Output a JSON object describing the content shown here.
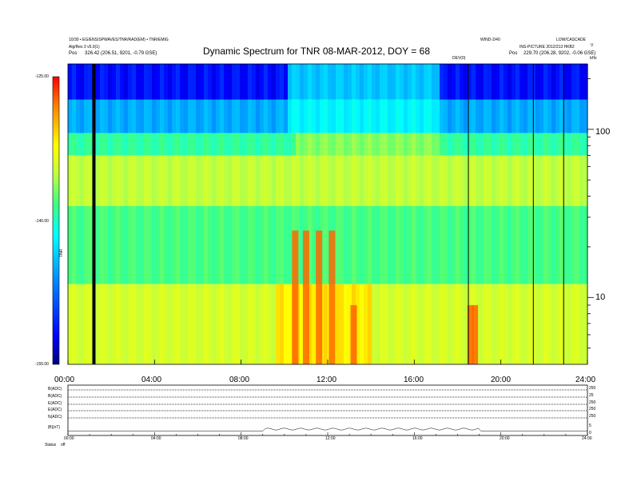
{
  "header": {
    "left_line1": "10/30 • EG/ENS/SPWAVES/TNR/RAD(EM) • TNR/EMIG",
    "left_line2": "Alg/Res 3 v5.0(1)",
    "left_line3_label": "Pos",
    "left_line3_value": "326.42 (206.51, 9201, -0.79 GSE)",
    "right_line1": "WIND-2/40",
    "right_line1b": "LOW/CASCADE",
    "right_line2": "INS-PICTURE 2012/213 HKB2",
    "right_line3_label": "Pos",
    "right_line3_value": "229.70 (206.28, 9202, -0.06 GSE)",
    "right_marker": "DEV(0)",
    "corner_unit": "kHz",
    "corner_v": "V"
  },
  "chart_data": {
    "type": "heatmap",
    "title": "Dynamic Spectrum for TNR 08-MAR-2012, DOY = 68",
    "xlabel": "",
    "x_ticks": [
      "00:00",
      "04:00",
      "08:00",
      "12:00",
      "16:00",
      "20:00",
      "24:00"
    ],
    "x_range_hours": [
      0,
      24
    ],
    "ylabel_right": "kHz",
    "y_scale": "log",
    "y_ticks": [
      {
        "value": 100,
        "label": "100"
      },
      {
        "value": 10,
        "label": "10"
      }
    ],
    "y_range_khz": [
      4,
      245
    ],
    "colorbar": {
      "label": "TNR",
      "ticks": [
        "-125.00",
        "-140.00",
        "-155.00"
      ],
      "range_db": [
        -155,
        -125
      ],
      "colors": [
        "#000080",
        "#0000ff",
        "#00a0ff",
        "#00ffff",
        "#40ff80",
        "#c0ff40",
        "#ffff00",
        "#ff8000",
        "#ff0000"
      ]
    },
    "data_gaps_hours": [
      1.2,
      18.5,
      21.5,
      22.9
    ],
    "bands": [
      {
        "name": "background-high",
        "from_khz": 150,
        "to_khz": 245,
        "db": -151
      },
      {
        "name": "cyan-mid",
        "from_khz": 95,
        "to_khz": 150,
        "db": -147
      },
      {
        "name": "green-upper",
        "from_khz": 70,
        "to_khz": 95,
        "db": -141
      },
      {
        "name": "yellow-band",
        "from_khz": 35,
        "to_khz": 70,
        "db": -136
      },
      {
        "name": "green-lower",
        "from_khz": 12,
        "to_khz": 35,
        "db": -140
      },
      {
        "name": "yellow-low",
        "from_khz": 4,
        "to_khz": 12,
        "db": -135
      }
    ],
    "bursts_hours": [
      10.5,
      11.0,
      11.6,
      12.2,
      18.6,
      18.8,
      13.2
    ]
  },
  "bottom_panel": {
    "row_labels": [
      "B(ADC)",
      "B(ADC)",
      "E(ADC)",
      "E(ADC)",
      "N(ADC)",
      "|B|(nT)"
    ],
    "right_labels": [
      "250",
      "25",
      "250",
      "250",
      "250",
      "5",
      "0"
    ],
    "x_ticks": [
      "00:00",
      "04:00",
      "08:00",
      "12:00",
      "16:00",
      "20:00",
      "24:00"
    ],
    "footer_label": "Status",
    "footer_value": "off"
  }
}
